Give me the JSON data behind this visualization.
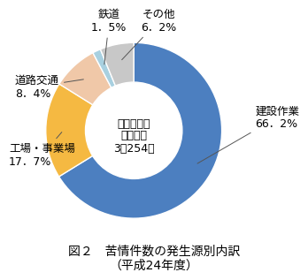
{
  "title_line1": "図２　苦情件数の発生源別内訳",
  "title_line2": "（平成24年度）",
  "center_text_line1": "振動に係る",
  "center_text_line2": "苦情件数",
  "center_text_line3": "3，254件",
  "labels": [
    "建設作業",
    "工場・事業場",
    "道路交通",
    "鉄道",
    "その他"
  ],
  "values": [
    66.2,
    17.7,
    8.4,
    1.5,
    6.2
  ],
  "colors": [
    "#4c7fc0",
    "#f5b942",
    "#f0c8a8",
    "#a8d0e0",
    "#c8c8c8"
  ],
  "label_texts": [
    "建設作業\n66．2%",
    "工場・事業場\n17．7%",
    "道路交通\n8．4%",
    "鉄道\n1．5%",
    "その他\n6．2%"
  ],
  "background_color": "#ffffff",
  "wedge_edge_color": "#ffffff",
  "donut_width": 0.45,
  "start_angle": 90,
  "font_size_label": 9,
  "font_size_center": 9,
  "font_size_title": 10
}
